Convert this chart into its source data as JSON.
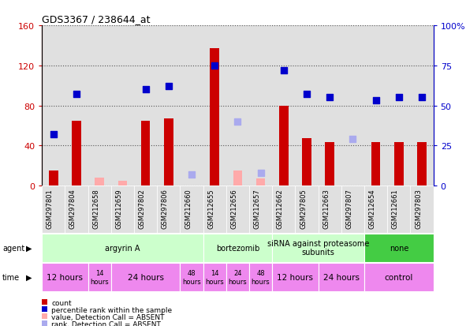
{
  "title": "GDS3367 / 238644_at",
  "samples": [
    "GSM297801",
    "GSM297804",
    "GSM212658",
    "GSM212659",
    "GSM297802",
    "GSM297806",
    "GSM212660",
    "GSM212655",
    "GSM212656",
    "GSM212657",
    "GSM212662",
    "GSM297805",
    "GSM212663",
    "GSM297807",
    "GSM212654",
    "GSM212661",
    "GSM297803"
  ],
  "counts": [
    15,
    65,
    null,
    null,
    65,
    67,
    null,
    137,
    null,
    null,
    80,
    47,
    43,
    null,
    43,
    43,
    43
  ],
  "counts_absent": [
    null,
    null,
    8,
    5,
    null,
    null,
    null,
    null,
    15,
    7,
    null,
    null,
    null,
    null,
    null,
    null,
    null
  ],
  "ranks": [
    32,
    57,
    null,
    null,
    60,
    62,
    null,
    75,
    null,
    null,
    72,
    57,
    55,
    null,
    53,
    55,
    55
  ],
  "ranks_absent": [
    null,
    null,
    null,
    null,
    null,
    null,
    7,
    null,
    40,
    8,
    null,
    null,
    null,
    29,
    null,
    null,
    null
  ],
  "ylim_left": [
    0,
    160
  ],
  "ylim_right": [
    0,
    100
  ],
  "yticks_left": [
    0,
    40,
    80,
    120,
    160
  ],
  "yticks_right": [
    0,
    25,
    50,
    75,
    100
  ],
  "agent_groups": [
    {
      "label": "argyrin A",
      "start": 0,
      "end": 7,
      "color": "#ccffcc"
    },
    {
      "label": "bortezomib",
      "start": 7,
      "end": 10,
      "color": "#ccffcc"
    },
    {
      "label": "siRNA against proteasome\nsubunits",
      "start": 10,
      "end": 14,
      "color": "#ccffcc"
    },
    {
      "label": "none",
      "start": 14,
      "end": 17,
      "color": "#44cc44"
    }
  ],
  "time_groups": [
    {
      "label": "12 hours",
      "start": 0,
      "end": 2,
      "fontsize": 7.5
    },
    {
      "label": "14\nhours",
      "start": 2,
      "end": 3,
      "fontsize": 6
    },
    {
      "label": "24 hours",
      "start": 3,
      "end": 6,
      "fontsize": 7.5
    },
    {
      "label": "48\nhours",
      "start": 6,
      "end": 7,
      "fontsize": 6
    },
    {
      "label": "14\nhours",
      "start": 7,
      "end": 8,
      "fontsize": 6
    },
    {
      "label": "24\nhours",
      "start": 8,
      "end": 9,
      "fontsize": 6
    },
    {
      "label": "48\nhours",
      "start": 9,
      "end": 10,
      "fontsize": 6
    },
    {
      "label": "12 hours",
      "start": 10,
      "end": 12,
      "fontsize": 7.5
    },
    {
      "label": "24 hours",
      "start": 12,
      "end": 14,
      "fontsize": 7.5
    },
    {
      "label": "control",
      "start": 14,
      "end": 17,
      "fontsize": 7.5
    }
  ],
  "bar_color_present": "#cc0000",
  "bar_color_absent": "#ffaaaa",
  "rank_color_present": "#0000cc",
  "rank_color_absent": "#aaaaee",
  "bar_width": 0.4,
  "rank_marker_size": 40,
  "col_bg_color": "#e0e0e0",
  "grid_color": "#555555",
  "left_axis_color": "#cc0000",
  "right_axis_color": "#0000cc"
}
